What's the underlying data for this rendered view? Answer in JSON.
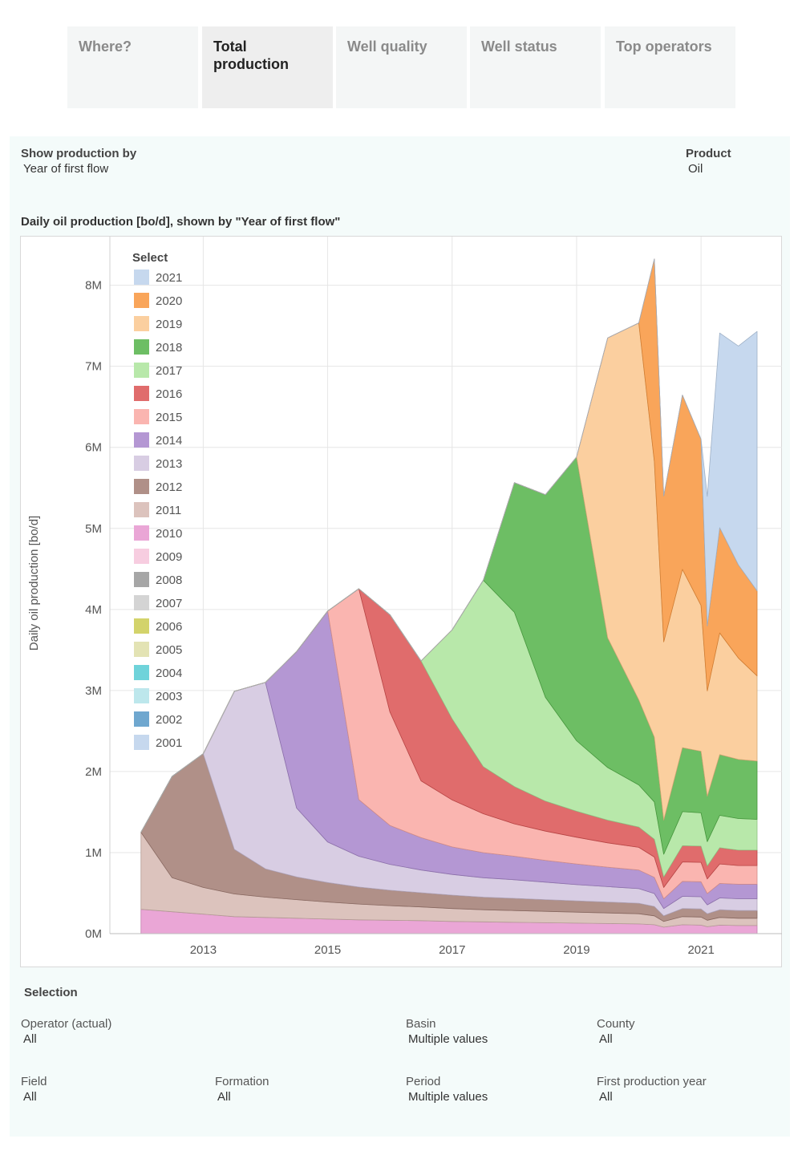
{
  "tabs": [
    {
      "label": "Where?",
      "active": false
    },
    {
      "label": "Total production",
      "active": true
    },
    {
      "label": "Well quality",
      "active": false
    },
    {
      "label": "Well status",
      "active": false
    },
    {
      "label": "Top operators",
      "active": false
    }
  ],
  "controls": {
    "show_by_title": "Show production by",
    "show_by_value": "Year of first flow",
    "product_title": "Product",
    "product_value": "Oil"
  },
  "chart_data": {
    "type": "area",
    "stacked": true,
    "title": "Daily oil production [bo/d], shown by \"Year of first flow\"",
    "ylabel": "Daily oil production [bo/d]",
    "xlabel": "",
    "xlim": [
      2011.5,
      2022.3
    ],
    "ylim": [
      0,
      8600000
    ],
    "x_ticks": [
      2013,
      2015,
      2017,
      2019,
      2021
    ],
    "y_ticks": [
      0,
      1000000,
      2000000,
      3000000,
      4000000,
      5000000,
      6000000,
      7000000,
      8000000
    ],
    "y_tick_labels": [
      "0M",
      "1M",
      "2M",
      "3M",
      "4M",
      "5M",
      "6M",
      "7M",
      "8M"
    ],
    "grid": true,
    "legend_title": "Select",
    "legend_position": "top-left",
    "legend": [
      {
        "name": "2021",
        "color": "#c6d8ee"
      },
      {
        "name": "2020",
        "color": "#f9a55a"
      },
      {
        "name": "2019",
        "color": "#fbcf9f"
      },
      {
        "name": "2018",
        "color": "#6dbe64"
      },
      {
        "name": "2017",
        "color": "#b8e8aa"
      },
      {
        "name": "2016",
        "color": "#e06c6c"
      },
      {
        "name": "2015",
        "color": "#fab5b0"
      },
      {
        "name": "2014",
        "color": "#b497d3"
      },
      {
        "name": "2013",
        "color": "#d8cde3"
      },
      {
        "name": "2012",
        "color": "#b09088"
      },
      {
        "name": "2011",
        "color": "#dcc3bd"
      },
      {
        "name": "2010",
        "color": "#eaa6d6"
      },
      {
        "name": "2009",
        "color": "#f7cde0"
      },
      {
        "name": "2008",
        "color": "#a6a6a6"
      },
      {
        "name": "2007",
        "color": "#d4d4d4"
      },
      {
        "name": "2006",
        "color": "#d3d36b"
      },
      {
        "name": "2005",
        "color": "#e3e3b4"
      },
      {
        "name": "2004",
        "color": "#6fd3da"
      },
      {
        "name": "2003",
        "color": "#bde7ec"
      },
      {
        "name": "2002",
        "color": "#6fa7cf"
      },
      {
        "name": "2001",
        "color": "#c6d8ee"
      }
    ],
    "x": [
      2012.0,
      2012.5,
      2013.0,
      2013.5,
      2014.0,
      2014.5,
      2015.0,
      2015.5,
      2016.0,
      2016.5,
      2017.0,
      2017.5,
      2018.0,
      2018.5,
      2019.0,
      2019.5,
      2020.0,
      2020.25,
      2020.4,
      2020.7,
      2021.0,
      2021.1,
      2021.3,
      2021.6,
      2021.9
    ],
    "series": [
      {
        "name": "2001-2010",
        "color": "#eaa6d6",
        "values": [
          300000,
          270000,
          240000,
          210000,
          200000,
          190000,
          180000,
          170000,
          165000,
          160000,
          150000,
          145000,
          140000,
          135000,
          130000,
          125000,
          120000,
          110000,
          80000,
          110000,
          105000,
          85000,
          105000,
          100000,
          100000
        ]
      },
      {
        "name": "2011",
        "color": "#dcc3bd",
        "values": [
          950000,
          420000,
          330000,
          280000,
          250000,
          230000,
          210000,
          195000,
          180000,
          170000,
          160000,
          150000,
          145000,
          140000,
          135000,
          130000,
          125000,
          110000,
          70000,
          100000,
          100000,
          80000,
          95000,
          90000,
          90000
        ]
      },
      {
        "name": "2012",
        "color": "#b09088",
        "values": [
          0,
          1250000,
          1650000,
          550000,
          350000,
          280000,
          240000,
          210000,
          190000,
          175000,
          165000,
          155000,
          150000,
          145000,
          140000,
          135000,
          130000,
          115000,
          70000,
          100000,
          100000,
          80000,
          95000,
          95000,
          95000
        ]
      },
      {
        "name": "2013",
        "color": "#d8cde3",
        "values": [
          0,
          0,
          0,
          1950000,
          2300000,
          850000,
          500000,
          380000,
          320000,
          280000,
          255000,
          240000,
          230000,
          215000,
          200000,
          190000,
          180000,
          160000,
          90000,
          150000,
          150000,
          110000,
          145000,
          145000,
          145000
        ]
      },
      {
        "name": "2014",
        "color": "#b497d3",
        "values": [
          0,
          0,
          0,
          0,
          0,
          1930000,
          2850000,
          700000,
          480000,
          400000,
          340000,
          310000,
          290000,
          270000,
          255000,
          240000,
          230000,
          200000,
          120000,
          185000,
          185000,
          140000,
          180000,
          180000,
          180000
        ]
      },
      {
        "name": "2015",
        "color": "#fab5b0",
        "values": [
          0,
          0,
          0,
          0,
          0,
          0,
          0,
          2600000,
          1400000,
          700000,
          580000,
          480000,
          400000,
          360000,
          330000,
          300000,
          280000,
          250000,
          140000,
          240000,
          240000,
          180000,
          240000,
          230000,
          230000
        ]
      },
      {
        "name": "2016",
        "color": "#e06c6c",
        "values": [
          0,
          0,
          0,
          0,
          0,
          0,
          0,
          0,
          1200000,
          1480000,
          1000000,
          580000,
          460000,
          370000,
          320000,
          280000,
          250000,
          220000,
          130000,
          200000,
          200000,
          160000,
          200000,
          190000,
          190000
        ]
      },
      {
        "name": "2017",
        "color": "#b8e8aa",
        "values": [
          0,
          0,
          0,
          0,
          0,
          0,
          0,
          0,
          0,
          0,
          1100000,
          2300000,
          2150000,
          1280000,
          870000,
          650000,
          520000,
          460000,
          280000,
          420000,
          410000,
          300000,
          400000,
          390000,
          380000
        ]
      },
      {
        "name": "2018",
        "color": "#6dbe64",
        "values": [
          0,
          0,
          0,
          0,
          0,
          0,
          0,
          0,
          0,
          0,
          0,
          0,
          1600000,
          2500000,
          3500000,
          1600000,
          1050000,
          800000,
          420000,
          790000,
          760000,
          560000,
          750000,
          730000,
          720000
        ]
      },
      {
        "name": "2019",
        "color": "#fbcf9f",
        "values": [
          0,
          0,
          0,
          0,
          0,
          0,
          0,
          0,
          0,
          0,
          0,
          0,
          0,
          0,
          0,
          3700000,
          4650000,
          3400000,
          2200000,
          2200000,
          1800000,
          1300000,
          1500000,
          1250000,
          1050000
        ]
      },
      {
        "name": "2020",
        "color": "#f9a55a",
        "values": [
          0,
          0,
          0,
          0,
          0,
          0,
          0,
          0,
          0,
          0,
          0,
          0,
          0,
          0,
          0,
          0,
          0,
          2500000,
          1800000,
          2150000,
          2050000,
          800000,
          1300000,
          1150000,
          1050000
        ]
      },
      {
        "name": "2021",
        "color": "#c6d8ee",
        "values": [
          0,
          0,
          0,
          0,
          0,
          0,
          0,
          0,
          0,
          0,
          0,
          0,
          0,
          0,
          0,
          0,
          0,
          0,
          0,
          0,
          0,
          1600000,
          2400000,
          2700000,
          3200000
        ]
      }
    ]
  },
  "selection": {
    "title": "Selection",
    "operator_label": "Operator (actual)",
    "operator_value": "All",
    "basin_label": "Basin",
    "basin_value": "Multiple values",
    "county_label": "County",
    "county_value": "All",
    "field_label": "Field",
    "field_value": "All",
    "formation_label": "Formation",
    "formation_value": "All",
    "period_label": "Period",
    "period_value": "Multiple values",
    "first_year_label": "First production year",
    "first_year_value": "All"
  }
}
